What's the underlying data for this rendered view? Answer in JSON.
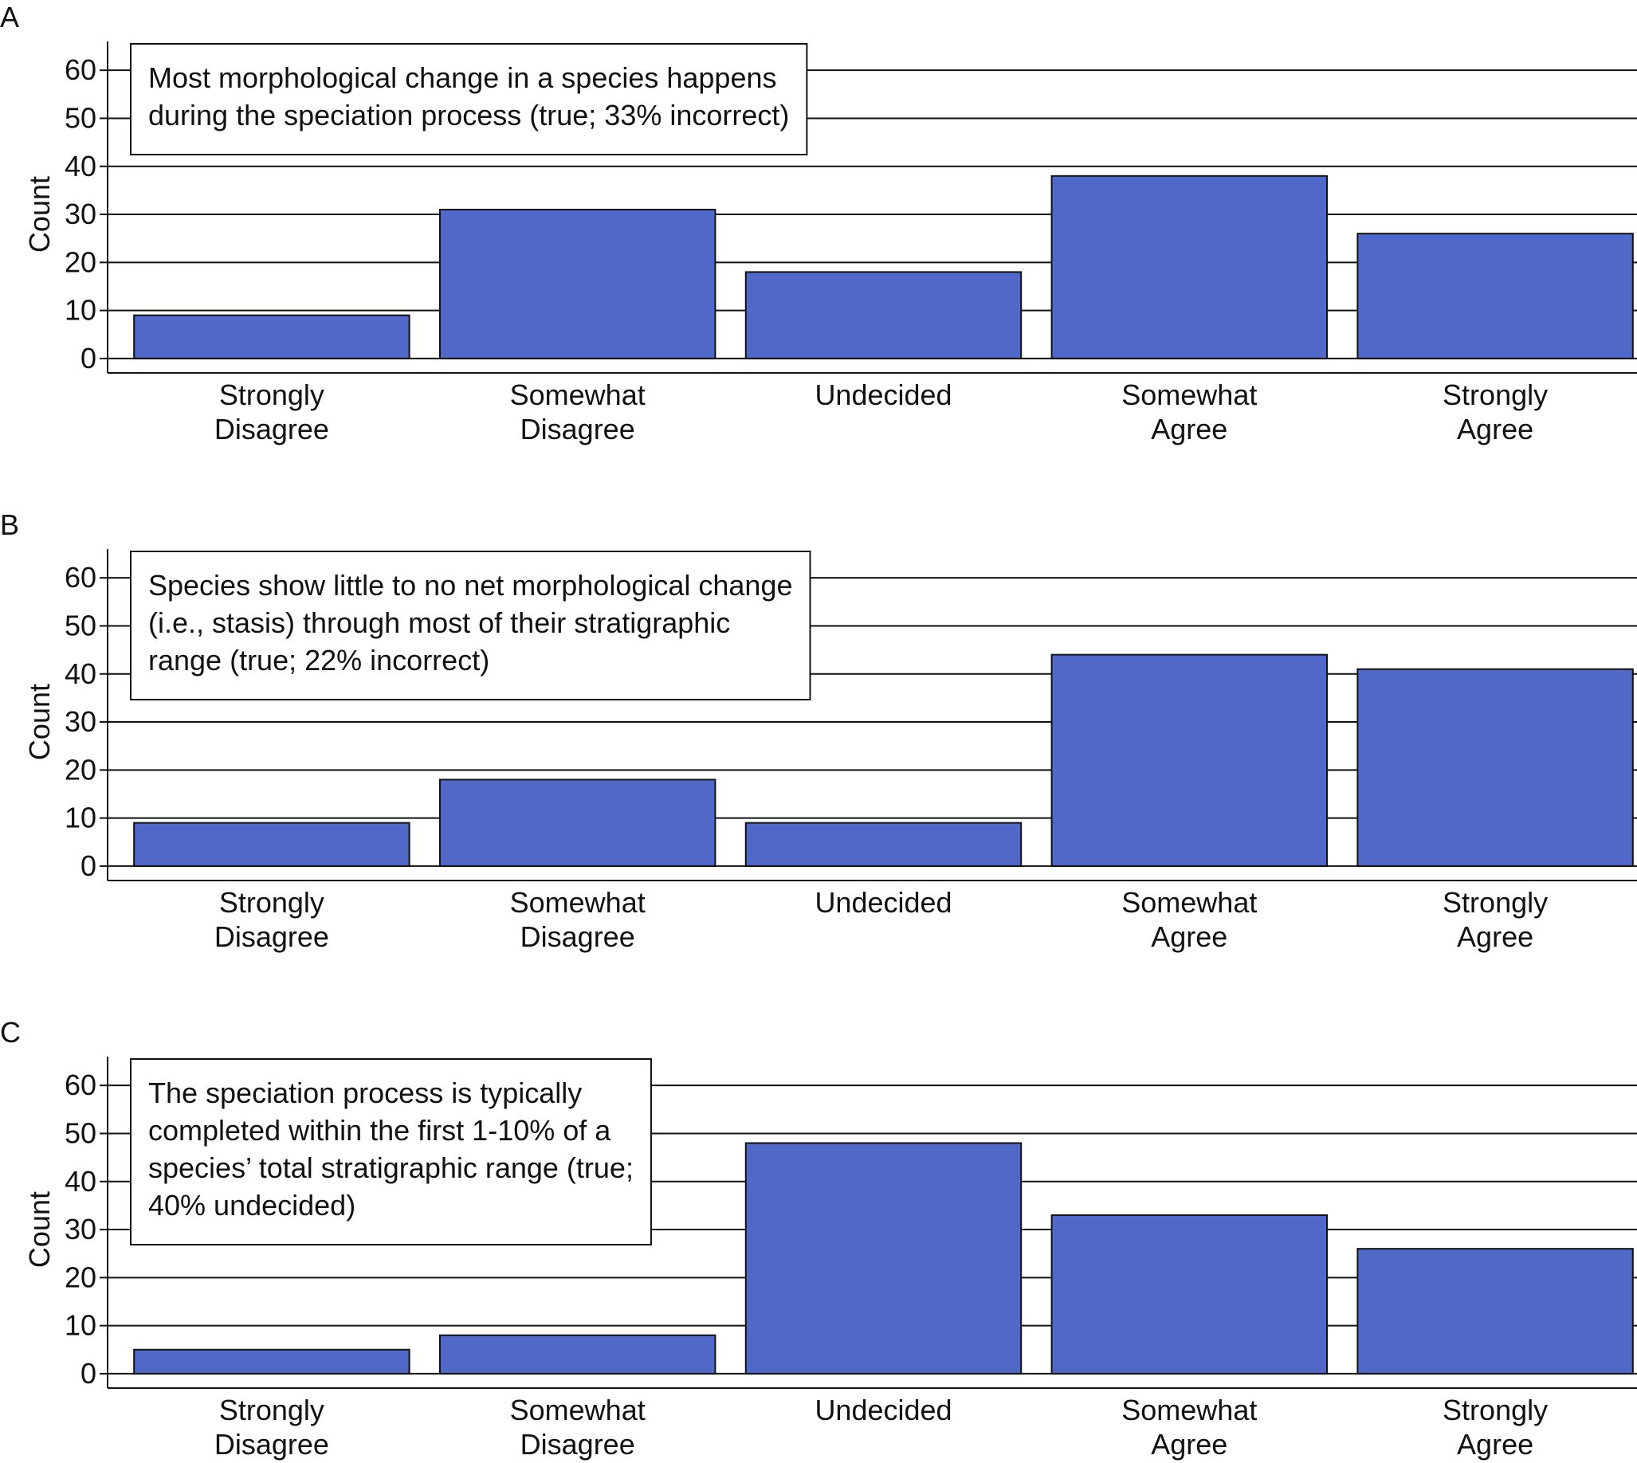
{
  "chart_data": [
    {
      "type": "bar",
      "panel": "A",
      "ylabel": "Count",
      "annotation": [
        "Most morphological change in a species happens",
        "during the speciation process (true; 33% incorrect)"
      ],
      "categories": [
        "Strongly Disagree",
        "Somewhat Disagree",
        "Undecided",
        "Somewhat Agree",
        "Strongly Agree"
      ],
      "values": [
        9,
        31,
        18,
        38,
        26
      ],
      "color": "#5068c8",
      "ylim": [
        -3,
        66
      ],
      "yticks": [
        0,
        10,
        20,
        30,
        40,
        50,
        60
      ],
      "grid": true
    },
    {
      "type": "bar",
      "panel": "B",
      "ylabel": "Count",
      "annotation": [
        "Species show little to no net morphological change",
        "(i.e., stasis) through most of their stratigraphic",
        "range (true; 22% incorrect)"
      ],
      "categories": [
        "Strongly Disagree",
        "Somewhat Disagree",
        "Undecided",
        "Somewhat Agree",
        "Strongly Agree"
      ],
      "values": [
        9,
        18,
        9,
        44,
        41
      ],
      "color": "#5068c8",
      "ylim": [
        -3,
        66
      ],
      "yticks": [
        0,
        10,
        20,
        30,
        40,
        50,
        60
      ],
      "grid": true
    },
    {
      "type": "bar",
      "panel": "C",
      "ylabel": "Count",
      "annotation": [
        "The speciation process is typically",
        "completed within the first 1-10% of a",
        "species’ total stratigraphic range (true;",
        "40% undecided)"
      ],
      "categories": [
        "Strongly Disagree",
        "Somewhat Disagree",
        "Undecided",
        "Somewhat Agree",
        "Strongly Agree"
      ],
      "values": [
        5,
        8,
        48,
        33,
        26
      ],
      "color": "#5068c8",
      "ylim": [
        -3,
        66
      ],
      "yticks": [
        0,
        10,
        20,
        30,
        40,
        50,
        60
      ],
      "grid": true
    }
  ]
}
